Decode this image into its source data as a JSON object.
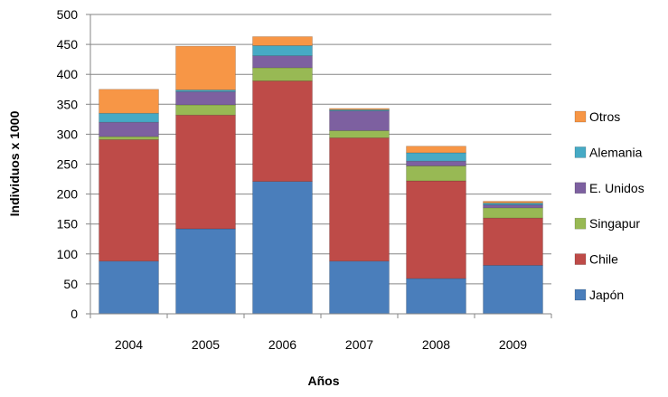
{
  "chart_data": {
    "type": "bar",
    "stacked": true,
    "xlabel": "Años",
    "ylabel": "Individuos x 1000",
    "ylim": [
      0,
      500
    ],
    "yticks": [
      0,
      50,
      100,
      150,
      200,
      250,
      300,
      350,
      400,
      450,
      500
    ],
    "grid": true,
    "legend_position": "right",
    "categories": [
      "2004",
      "2005",
      "2006",
      "2007",
      "2008",
      "2009"
    ],
    "series": [
      {
        "name": "Japón",
        "color": "#4a7ebb",
        "values": [
          88,
          142,
          221,
          88,
          59,
          81
        ]
      },
      {
        "name": "Chile",
        "color": "#be4b48",
        "values": [
          203,
          190,
          168,
          206,
          163,
          79
        ]
      },
      {
        "name": "Singapur",
        "color": "#98b954",
        "values": [
          5,
          17,
          22,
          12,
          25,
          17
        ]
      },
      {
        "name": "E. Unidos",
        "color": "#7d60a0",
        "values": [
          24,
          22,
          20,
          33,
          8,
          5
        ]
      },
      {
        "name": "Alemania",
        "color": "#46aac5",
        "values": [
          15,
          3,
          17,
          2,
          14,
          3
        ]
      },
      {
        "name": "Otros",
        "color": "#f79646",
        "values": [
          40,
          73,
          15,
          2,
          11,
          3
        ]
      }
    ]
  }
}
